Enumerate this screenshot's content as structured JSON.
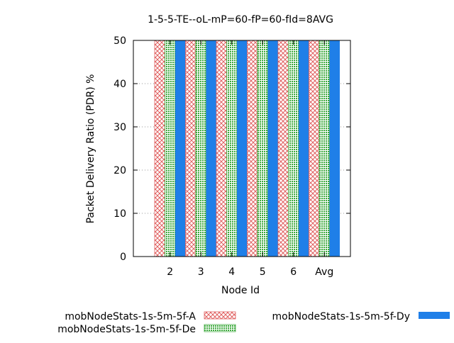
{
  "chart_data": {
    "type": "bar",
    "title": "1-5-5-TE--oL-mP=60-fP=60-fId=8AVG",
    "xlabel": "Node Id",
    "ylabel": "Packet Delivery Ratio (PDR) %",
    "categories": [
      "2",
      "3",
      "4",
      "5",
      "6",
      "Avg"
    ],
    "ylim": [
      0,
      50
    ],
    "yticks": [
      0,
      10,
      20,
      30,
      40,
      50
    ],
    "grid": true,
    "legend_position": "bottom",
    "series": [
      {
        "name": "mobNodeStats-1s-5m-5f-A",
        "values": [
          50,
          50,
          50,
          50,
          50,
          50
        ],
        "color": "#e06060",
        "pattern": "crosshatch"
      },
      {
        "name": "mobNodeStats-1s-5m-5f-De",
        "values": [
          50,
          50,
          50,
          50,
          50,
          50
        ],
        "color": "#3aa83a",
        "pattern": "dots"
      },
      {
        "name": "mobNodeStats-1s-5m-5f-Dy",
        "values": [
          50,
          50,
          50,
          50,
          50,
          50
        ],
        "color": "#1f7fe8",
        "pattern": "solid"
      }
    ]
  }
}
